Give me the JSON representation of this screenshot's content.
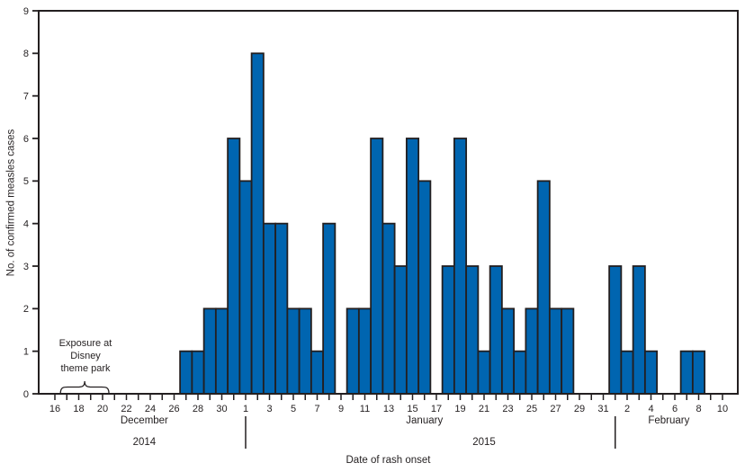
{
  "chart_data": {
    "type": "bar",
    "title": "",
    "xlabel": "Date of rash onset",
    "ylabel": "No. of confirmed measles cases",
    "ylim": [
      0,
      9
    ],
    "y_ticks": [
      0,
      1,
      2,
      3,
      4,
      5,
      6,
      7,
      8,
      9
    ],
    "x_tick_label_interval": 2,
    "grid": "off",
    "categories": [
      "Dec 16",
      "Dec 17",
      "Dec 18",
      "Dec 19",
      "Dec 20",
      "Dec 21",
      "Dec 22",
      "Dec 23",
      "Dec 24",
      "Dec 25",
      "Dec 26",
      "Dec 27",
      "Dec 28",
      "Dec 29",
      "Dec 30",
      "Dec 31",
      "Jan 1",
      "Jan 2",
      "Jan 3",
      "Jan 4",
      "Jan 5",
      "Jan 6",
      "Jan 7",
      "Jan 8",
      "Jan 9",
      "Jan 10",
      "Jan 11",
      "Jan 12",
      "Jan 13",
      "Jan 14",
      "Jan 15",
      "Jan 16",
      "Jan 17",
      "Jan 18",
      "Jan 19",
      "Jan 20",
      "Jan 21",
      "Jan 22",
      "Jan 23",
      "Jan 24",
      "Jan 25",
      "Jan 26",
      "Jan 27",
      "Jan 28",
      "Jan 29",
      "Jan 30",
      "Jan 31",
      "Feb 1",
      "Feb 2",
      "Feb 3",
      "Feb 4",
      "Feb 5",
      "Feb 6",
      "Feb 7",
      "Feb 8",
      "Feb 9",
      "Feb 10"
    ],
    "values": [
      0,
      0,
      0,
      0,
      0,
      0,
      0,
      0,
      0,
      0,
      0,
      1,
      1,
      2,
      2,
      6,
      5,
      8,
      4,
      4,
      2,
      2,
      1,
      4,
      0,
      2,
      2,
      6,
      4,
      3,
      6,
      5,
      0,
      3,
      6,
      3,
      1,
      3,
      2,
      1,
      2,
      5,
      2,
      2,
      0,
      0,
      0,
      3,
      1,
      3,
      1,
      0,
      0,
      1,
      1,
      0,
      0
    ],
    "months": [
      {
        "label": "December",
        "start_index": 0,
        "end_index": 15,
        "divider_before": false
      },
      {
        "label": "January",
        "start_index": 16,
        "end_index": 46,
        "divider_before": true
      },
      {
        "label": "February",
        "start_index": 47,
        "end_index": 56,
        "divider_before": true
      }
    ],
    "years": [
      {
        "label": "2014",
        "start_index": 0,
        "end_index": 15
      },
      {
        "label": "2015",
        "start_index": 16,
        "end_index": 56
      }
    ],
    "annotation": {
      "lines": [
        "Exposure at",
        "Disney",
        "theme park"
      ],
      "start_index": 1,
      "end_index": 4
    },
    "colors": {
      "bar_fill": "#0065B0",
      "bar_stroke": "#231F20",
      "axis": "#231F20",
      "text": "#231F20"
    }
  }
}
